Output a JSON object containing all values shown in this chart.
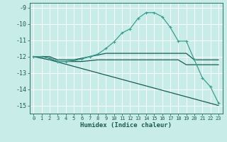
{
  "xlabel": "Humidex (Indice chaleur)",
  "background_color": "#c8ede8",
  "grid_color": "#ffffff",
  "line_color_light": "#3a9e90",
  "line_color_dark": "#1a5c52",
  "xlim": [
    -0.5,
    23.5
  ],
  "ylim": [
    -15.5,
    -8.7
  ],
  "xticks": [
    0,
    1,
    2,
    3,
    4,
    5,
    6,
    7,
    8,
    9,
    10,
    11,
    12,
    13,
    14,
    15,
    16,
    17,
    18,
    19,
    20,
    21,
    22,
    23
  ],
  "yticks": [
    -15,
    -14,
    -13,
    -12,
    -11,
    -10,
    -9
  ],
  "curve1_x": [
    0,
    1,
    2,
    3,
    4,
    5,
    6,
    7,
    8,
    9,
    10,
    11,
    12,
    13,
    14,
    15,
    16,
    17,
    18,
    19,
    20,
    21,
    22,
    23
  ],
  "curve1_y": [
    -12,
    -12,
    -12.1,
    -12.3,
    -12.3,
    -12.25,
    -12.15,
    -12.0,
    -11.85,
    -11.5,
    -11.1,
    -10.55,
    -10.3,
    -9.65,
    -9.3,
    -9.3,
    -9.55,
    -10.2,
    -11.05,
    -11.05,
    -12.2,
    -13.3,
    -13.85,
    -14.85
  ],
  "curve2_x": [
    0,
    1,
    2,
    3,
    4,
    5,
    6,
    7,
    8,
    9,
    10,
    11,
    12,
    13,
    14,
    15,
    16,
    17,
    18,
    19,
    20,
    21,
    22,
    23
  ],
  "curve2_y": [
    -12,
    -12,
    -12.0,
    -12.2,
    -12.2,
    -12.2,
    -12.1,
    -12.0,
    -11.9,
    -11.8,
    -11.8,
    -11.8,
    -11.8,
    -11.8,
    -11.8,
    -11.8,
    -11.8,
    -11.8,
    -11.8,
    -11.8,
    -12.2,
    -12.2,
    -12.2,
    -12.2
  ],
  "curve3_x": [
    0,
    1,
    2,
    3,
    4,
    5,
    6,
    7,
    8,
    9,
    10,
    11,
    12,
    13,
    14,
    15,
    16,
    17,
    18,
    19,
    20,
    21,
    22,
    23
  ],
  "curve3_y": [
    -12,
    -12,
    -12.1,
    -12.3,
    -12.3,
    -12.3,
    -12.3,
    -12.25,
    -12.2,
    -12.2,
    -12.2,
    -12.2,
    -12.2,
    -12.2,
    -12.2,
    -12.2,
    -12.2,
    -12.2,
    -12.2,
    -12.5,
    -12.5,
    -12.5,
    -12.5,
    -12.5
  ],
  "curve4_x": [
    0,
    2,
    23
  ],
  "curve4_y": [
    -12,
    -12.2,
    -15.0
  ]
}
